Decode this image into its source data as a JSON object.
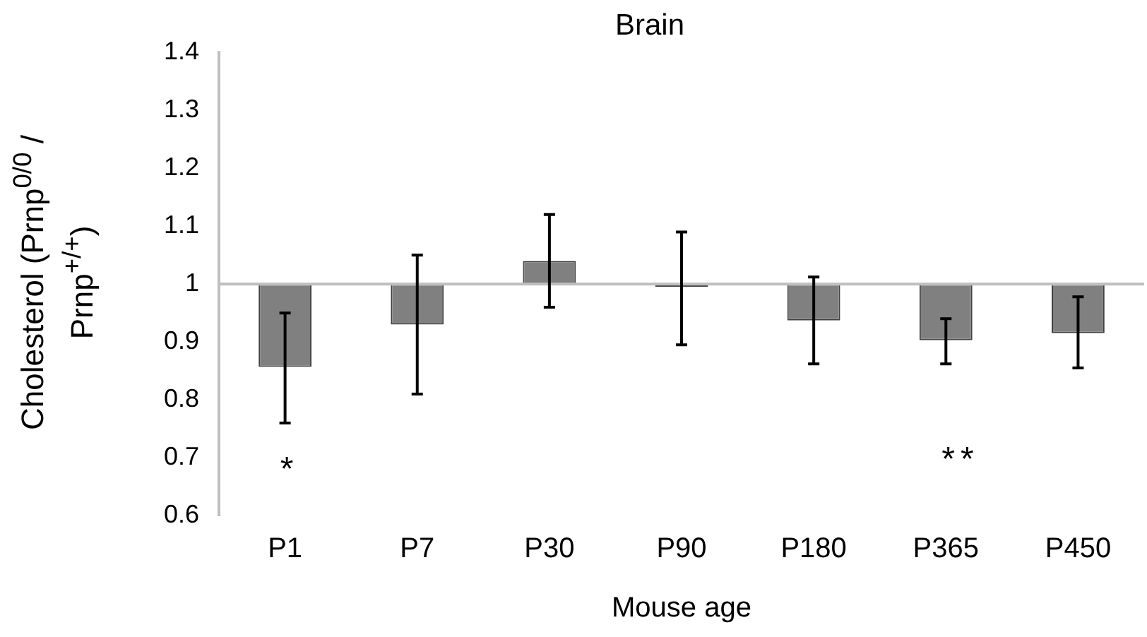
{
  "chart_data": {
    "type": "bar",
    "title": "Brain",
    "xlabel": "Mouse age",
    "ylabel": "Cholesterol (Prnp$^{0/0}$ / Prnp$^{+/+}$)",
    "categories": [
      "P1",
      "P7",
      "P30",
      "P90",
      "P180",
      "P365",
      "P450"
    ],
    "values": [
      -0.143,
      -0.07,
      0.04,
      -0.005,
      -0.063,
      -0.097,
      -0.085
    ],
    "base": [
      1,
      1,
      1,
      1,
      1,
      1,
      1
    ],
    "errors": [
      [
        0.76,
        0.95
      ],
      [
        0.81,
        1.05
      ],
      [
        0.96,
        1.12
      ],
      [
        0.895,
        1.09
      ],
      [
        0.862,
        1.012
      ],
      [
        0.862,
        0.94
      ],
      [
        0.855,
        0.978
      ]
    ],
    "color": "#808080",
    "ylim": [
      0.6,
      1.4
    ],
    "yticks": [
      0.6,
      0.7,
      0.8,
      0.9,
      1,
      1.1,
      1.2,
      1.3,
      1.4
    ],
    "grid": false,
    "legend": false,
    "ref_lines": [
      {
        "axis": "y",
        "value": 1,
        "color": "#bfbfbf"
      }
    ],
    "annotations": [
      "*",
      "**"
    ]
  }
}
